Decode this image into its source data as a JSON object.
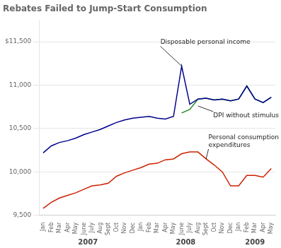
{
  "chart_data": {
    "type": "line",
    "title": "Rebates Failed to Jump-Start Consumption",
    "categories": [
      "Jan",
      "Feb",
      "Mar",
      "Apr",
      "May",
      "June",
      "July",
      "Aug",
      "Sept",
      "Oct",
      "Nov",
      "Dec",
      "Jan",
      "Feb",
      "Mar",
      "Apr",
      "May",
      "June",
      "July",
      "Aug",
      "Sept",
      "Oct",
      "Nov",
      "Dec",
      "Jan",
      "Feb",
      "Mar",
      "Apr",
      "May"
    ],
    "x_groups": [
      {
        "label": "2007",
        "start": 0
      },
      {
        "label": "2008",
        "start": 12
      },
      {
        "label": "2009",
        "start": 24
      }
    ],
    "series": [
      {
        "color": "#00008B",
        "values": [
          10220,
          10300,
          10340,
          10360,
          10390,
          10430,
          10460,
          10490,
          10530,
          10570,
          10600,
          10620,
          10630,
          10640,
          10620,
          10610,
          10640,
          11220,
          10780,
          10840,
          10850,
          10830,
          10840,
          10820,
          10840,
          10990,
          10840,
          10800,
          10860
        ]
      },
      {
        "color": "#228B22",
        "values": [
          null,
          null,
          null,
          null,
          null,
          null,
          null,
          null,
          null,
          null,
          null,
          null,
          null,
          null,
          null,
          null,
          null,
          10680,
          10720,
          10840,
          10850,
          10830,
          10840,
          10820,
          10840,
          10990,
          10840,
          10800,
          10860
        ]
      },
      {
        "color": "#CC2200",
        "values": [
          9580,
          9650,
          9700,
          9730,
          9760,
          9800,
          9840,
          9850,
          9870,
          9950,
          9990,
          10020,
          10050,
          10090,
          10100,
          10140,
          10150,
          10210,
          10230,
          10230,
          10150,
          10080,
          10000,
          9840,
          9840,
          9960,
          9960,
          9940,
          10040
        ]
      }
    ],
    "annotations": [
      {
        "text": "Disposable personal income",
        "x": 17,
        "y": 11220
      },
      {
        "text": "DPI without stimulus",
        "x": 19,
        "y": 10760
      },
      {
        "text": "Personal consumption\nexpenditures",
        "x": 20,
        "y": 10150
      }
    ],
    "ylim": [
      9500,
      11750
    ],
    "yticks": [
      {
        "value": 9500,
        "label": "9,500"
      },
      {
        "value": 10000,
        "label": "10,000"
      },
      {
        "value": 10500,
        "label": "10,500"
      },
      {
        "value": 11000,
        "label": "11,000"
      },
      {
        "value": 11500,
        "label": "$11,500"
      }
    ],
    "grid": "y"
  }
}
